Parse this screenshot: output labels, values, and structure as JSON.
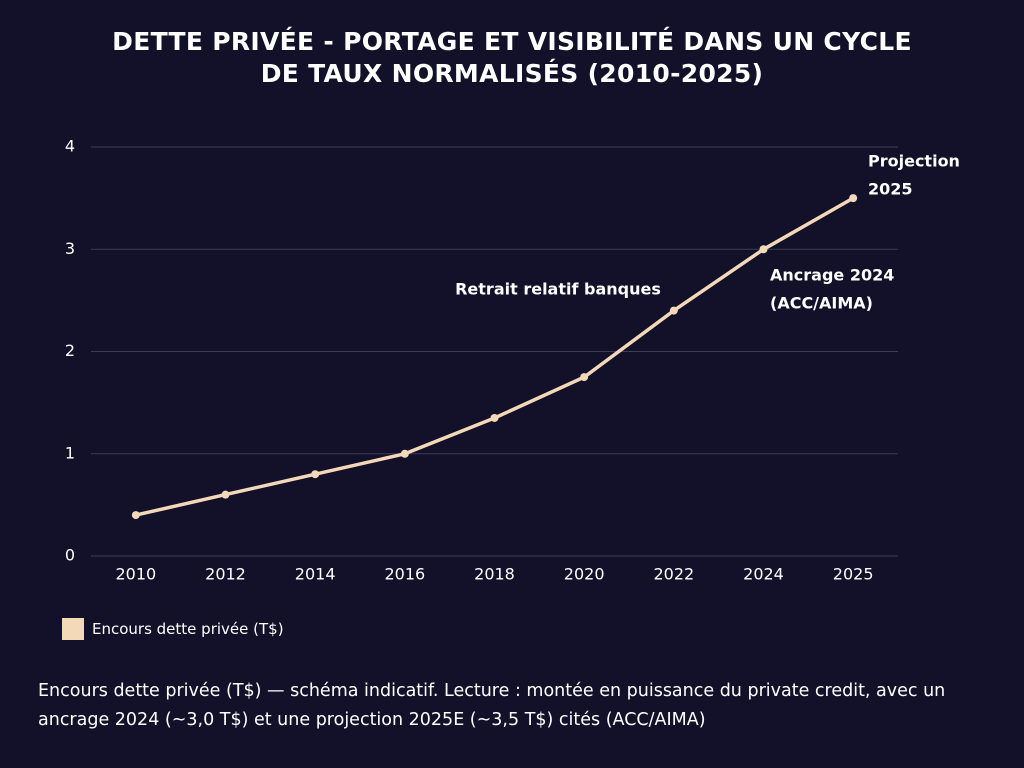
{
  "chart_data": {
    "type": "line",
    "title": "DETTE PRIVÉE - PORTAGE ET VISIBILITÉ DANS UN CYCLE DE TAUX NORMALISÉS (2010-2025)",
    "categories": [
      "2010",
      "2012",
      "2014",
      "2016",
      "2018",
      "2020",
      "2022",
      "2024",
      "2025"
    ],
    "series": [
      {
        "name": "Encours dette privée (T$)",
        "color": "#f3d9b8",
        "values": [
          0.4,
          0.6,
          0.8,
          1.0,
          1.35,
          1.75,
          2.4,
          3.0,
          3.5
        ]
      }
    ],
    "ylim": [
      0,
      4
    ],
    "yticks": [
      0,
      1,
      2,
      3,
      4
    ],
    "grid": true,
    "legend": "bottom-left",
    "annotations": [
      [
        "Retrait relatif banques"
      ],
      [
        "Ancrage 2024",
        "(ACC/AIMA)"
      ],
      [
        "Projection",
        "2025"
      ]
    ],
    "caption": "Encours dette privée (T$) — schéma indicatif. Lecture : montée en puissance du private credit, avec un ancrage 2024 (~3,0 T$) et une projection 2025E (~3,5 T$) cités (ACC/AIMA)"
  }
}
